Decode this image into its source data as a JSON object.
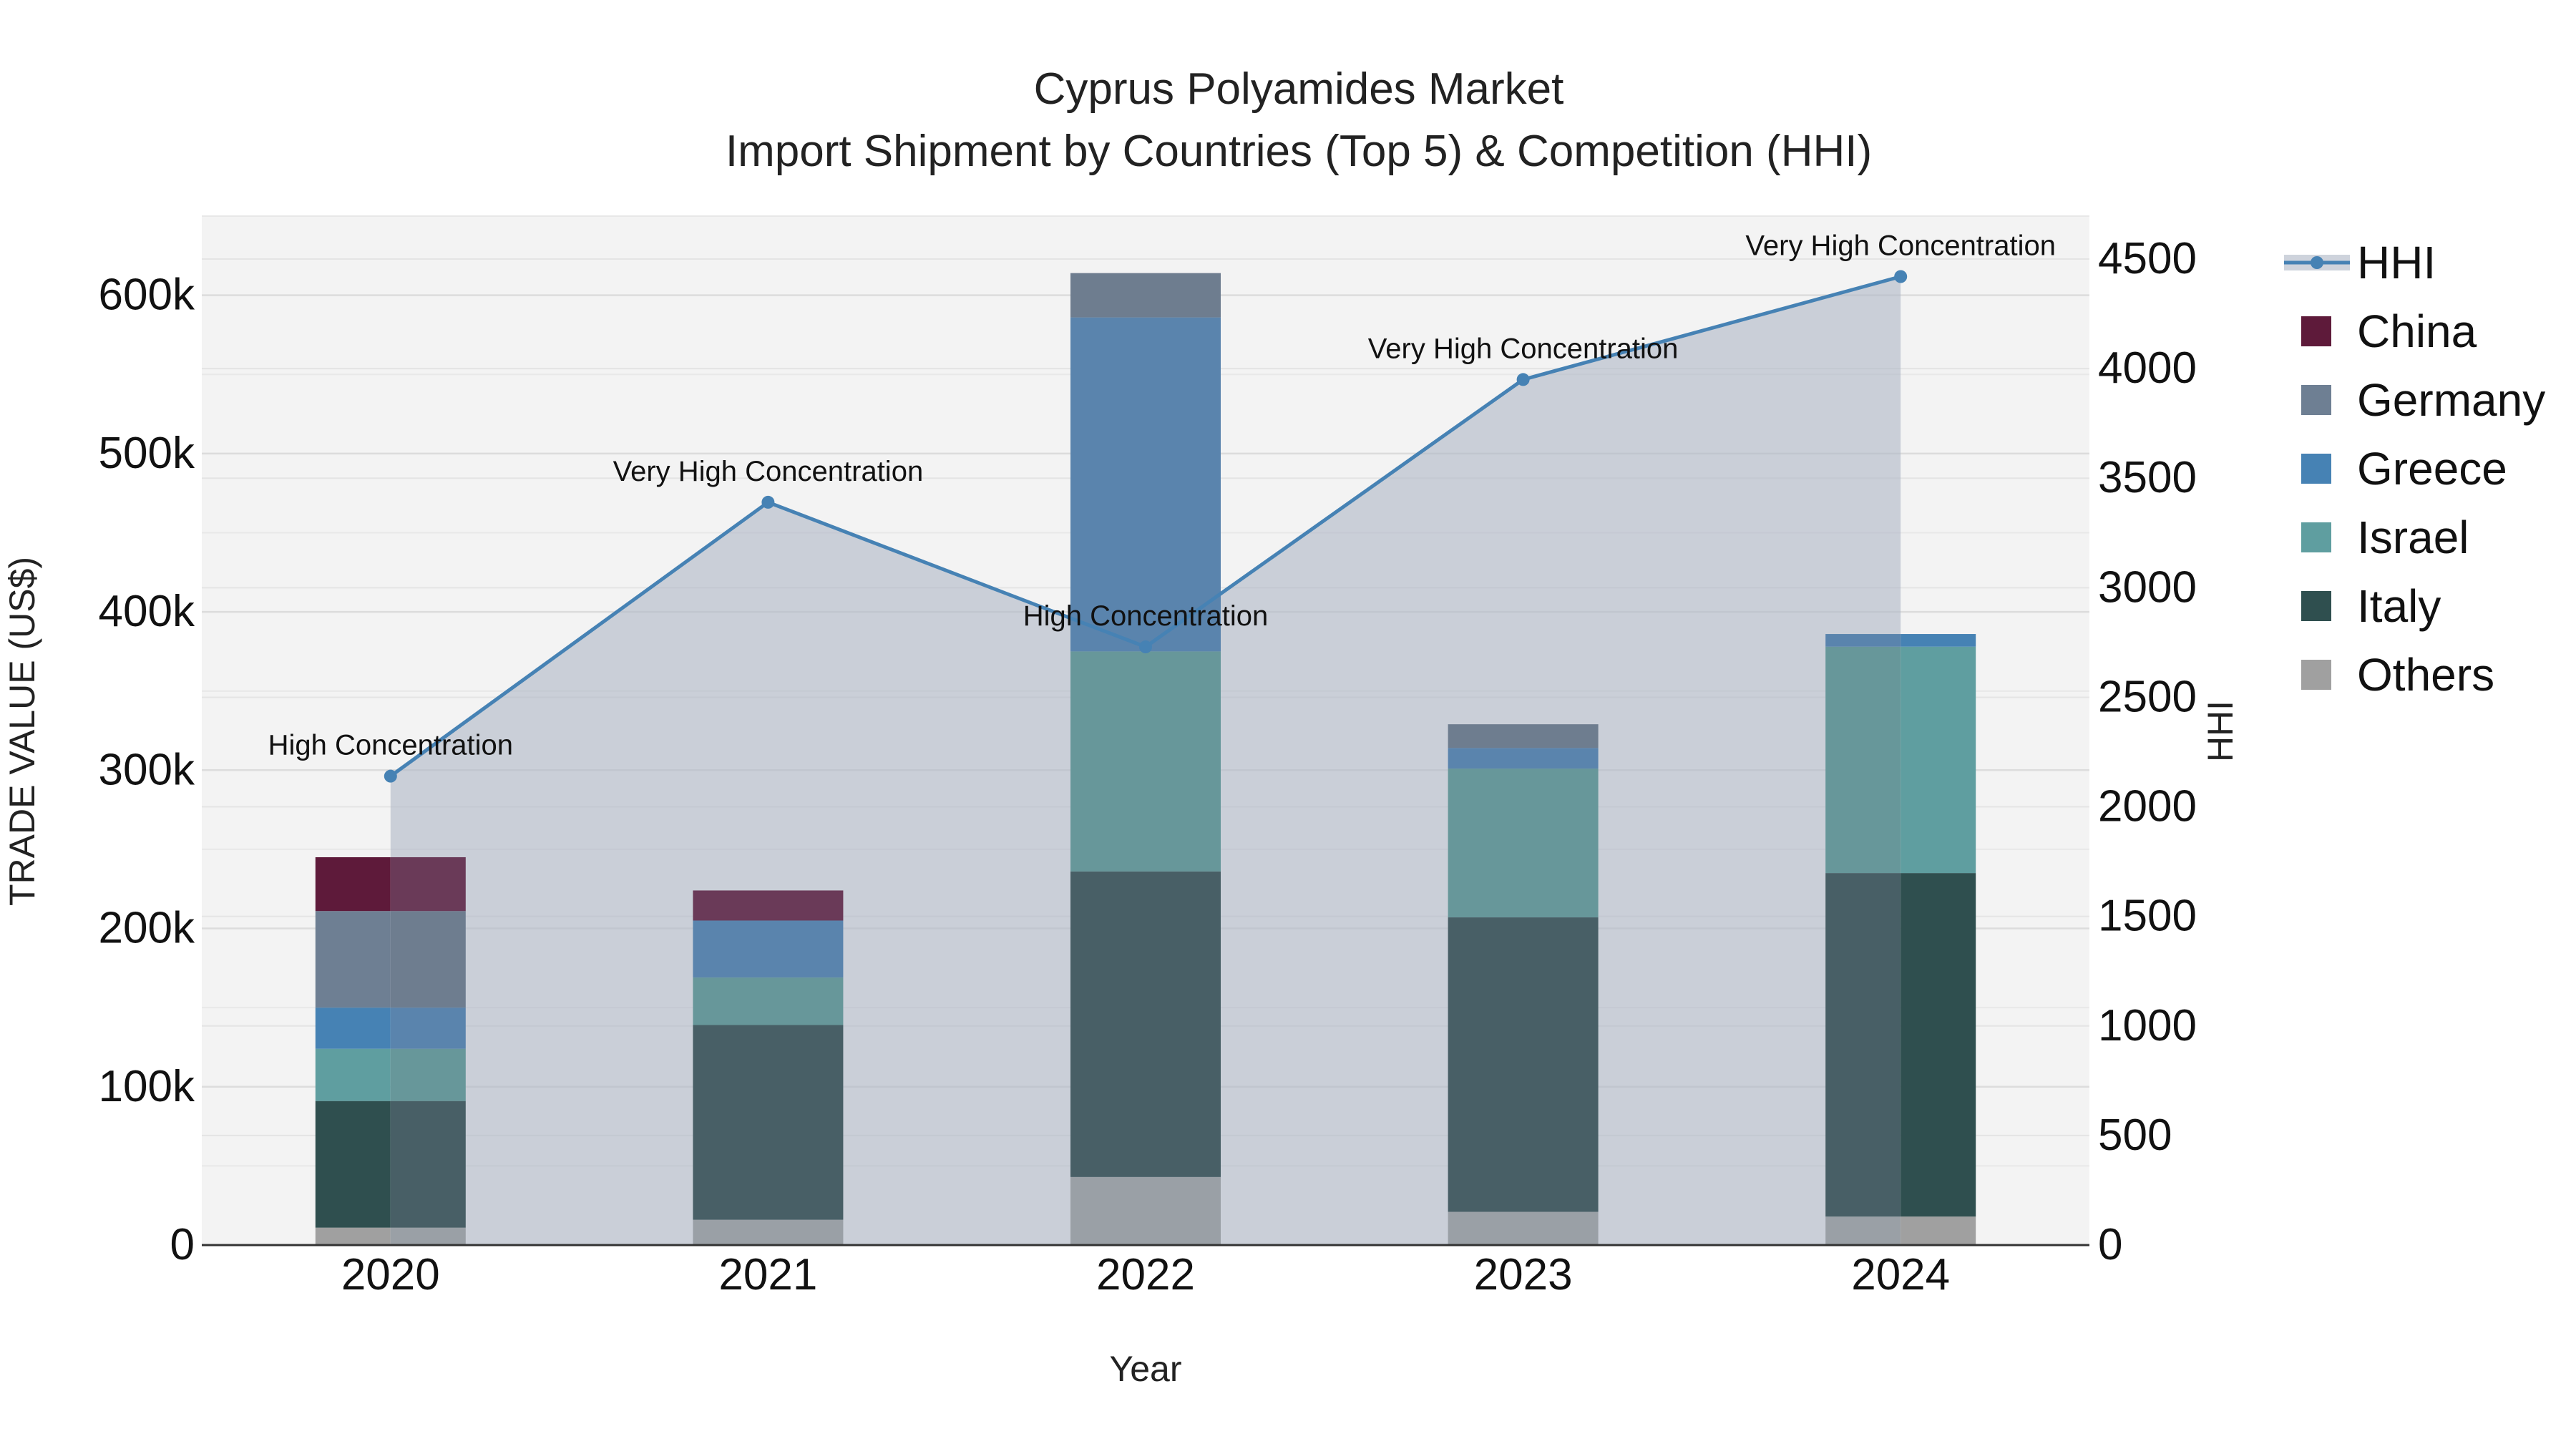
{
  "chart_data": {
    "type": "bar",
    "title": "Cyprus Polyamides Market",
    "subtitle": "Import Shipment by Countries (Top 5) & Competition (HHI)",
    "xlabel": "Year",
    "ylabel": "TRADE VALUE (US$)",
    "y2label": "HHI",
    "categories": [
      "2020",
      "2021",
      "2022",
      "2023",
      "2024"
    ],
    "ylim": [
      0,
      650000
    ],
    "y2lim": [
      0,
      4500
    ],
    "yticks": [
      "0",
      "100k",
      "200k",
      "300k",
      "400k",
      "500k",
      "600k"
    ],
    "y2ticks": [
      "0",
      "500",
      "1000",
      "1500",
      "2000",
      "2500",
      "3000",
      "3500",
      "4000",
      "4500"
    ],
    "grid": true,
    "legend_position": "right",
    "stack_order": [
      "Others",
      "Italy",
      "Israel",
      "Greece",
      "Germany",
      "China"
    ],
    "series": [
      {
        "name": "China",
        "color": "#5e1a3a",
        "values": [
          34000,
          19000,
          0,
          0,
          0
        ]
      },
      {
        "name": "Germany",
        "color": "#6e7f93",
        "values": [
          61000,
          0,
          28000,
          15000,
          0
        ]
      },
      {
        "name": "Greece",
        "color": "#4682b4",
        "values": [
          26000,
          36000,
          211000,
          13000,
          8000
        ]
      },
      {
        "name": "Israel",
        "color": "#5f9ea0",
        "values": [
          33000,
          30000,
          139000,
          94000,
          143000
        ]
      },
      {
        "name": "Italy",
        "color": "#2f4f4f",
        "values": [
          80000,
          123000,
          193000,
          186000,
          217000
        ]
      },
      {
        "name": "Others",
        "color": "#a0a0a0",
        "values": [
          11000,
          16000,
          43000,
          21000,
          18000
        ]
      }
    ],
    "hhi": {
      "name": "HHI",
      "color": "#4682b4",
      "values": [
        2140,
        3390,
        2730,
        3950,
        4420
      ],
      "labels": [
        "High Concentration",
        "Very High Concentration",
        "High Concentration",
        "Very High Concentration",
        "Very High Concentration"
      ]
    }
  }
}
